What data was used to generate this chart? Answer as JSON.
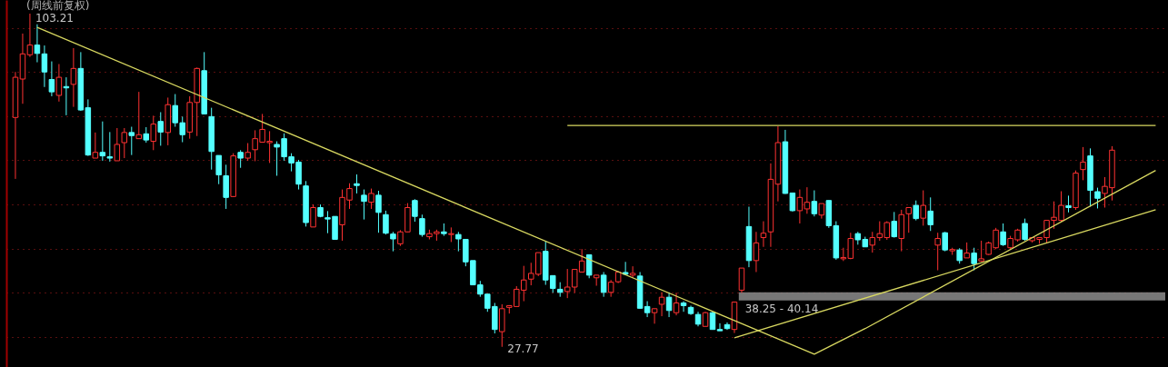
{
  "chart_data": {
    "type": "candlestick",
    "title": "(周线前复权)",
    "categories": [
      null,
      null,
      null,
      null,
      null,
      null,
      null,
      null,
      null,
      null,
      null,
      null,
      null,
      null,
      null,
      null,
      null,
      null,
      null,
      null,
      null,
      null,
      null,
      null,
      null,
      null,
      null,
      null,
      null,
      null,
      null,
      null,
      null,
      null,
      null,
      null,
      null,
      null,
      null,
      null,
      null,
      null,
      null,
      null,
      null,
      null,
      null,
      null,
      null,
      null,
      null,
      null,
      null,
      null,
      null,
      null,
      null,
      null,
      null,
      null,
      null,
      null,
      null,
      null,
      null,
      null,
      null,
      null,
      null,
      null,
      null,
      null,
      null,
      null,
      null,
      null,
      null,
      null,
      null,
      null,
      null,
      null,
      null,
      null,
      null,
      null,
      null,
      null,
      null,
      null,
      null,
      null,
      null,
      null,
      null,
      null,
      null,
      null,
      null,
      null,
      null,
      null,
      null,
      null,
      null,
      null,
      null,
      null,
      null,
      null,
      null,
      null,
      null,
      null,
      null,
      null,
      null,
      null,
      null,
      null,
      null,
      null,
      null,
      null,
      null,
      null,
      null,
      null,
      null,
      null,
      null,
      null,
      null,
      null,
      null,
      null,
      null,
      null,
      null,
      null,
      null,
      null,
      null,
      null,
      null,
      null,
      null,
      null,
      null,
      null,
      null,
      null,
      null,
      null,
      null,
      null,
      null,
      null
    ],
    "ohlc": [
      [
        79.7,
        90.0,
        65.8,
        88.8
      ],
      [
        88.4,
        98.7,
        82.8,
        94.1
      ],
      [
        93.9,
        103.21,
        93.4,
        96.1
      ],
      [
        96.1,
        100.8,
        92.2,
        94.2
      ],
      [
        94.1,
        96.0,
        86.6,
        90.0
      ],
      [
        88.3,
        92.4,
        84.5,
        85.5
      ],
      [
        84.7,
        91.8,
        83.3,
        88.8
      ],
      [
        86.7,
        88.8,
        80.2,
        86.4
      ],
      [
        87.2,
        95.4,
        82.1,
        90.8
      ],
      [
        90.8,
        94.5,
        81.2,
        81.4
      ],
      [
        81.9,
        83.8,
        71.0,
        71.2
      ],
      [
        70.5,
        76.3,
        70.5,
        71.8
      ],
      [
        71.8,
        78.8,
        69.9,
        71.0
      ],
      [
        70.8,
        76.4,
        69.7,
        70.5
      ],
      [
        69.9,
        77.3,
        69.9,
        73.6
      ],
      [
        74.0,
        77.3,
        70.5,
        76.3
      ],
      [
        76.3,
        77.6,
        71.2,
        75.6
      ],
      [
        74.9,
        85.5,
        74.9,
        75.8
      ],
      [
        76.0,
        77.5,
        74.0,
        74.6
      ],
      [
        74.3,
        80.1,
        72.3,
        78.2
      ],
      [
        78.8,
        80.9,
        73.3,
        76.4
      ],
      [
        76.3,
        84.2,
        73.4,
        82.6
      ],
      [
        82.4,
        85.0,
        77.6,
        78.5
      ],
      [
        78.5,
        79.9,
        74.1,
        75.8
      ],
      [
        76.4,
        84.5,
        74.9,
        83.1
      ],
      [
        83.1,
        91.0,
        75.5,
        90.8
      ],
      [
        90.3,
        94.5,
        80.5,
        80.5
      ],
      [
        79.9,
        81.9,
        67.9,
        72.0
      ],
      [
        71.1,
        71.1,
        64.6,
        66.7
      ],
      [
        66.5,
        69.0,
        59.0,
        61.6
      ],
      [
        61.8,
        71.6,
        61.7,
        71.0
      ],
      [
        71.8,
        72.3,
        68.3,
        70.5
      ],
      [
        70.5,
        73.9,
        69.9,
        71.8
      ],
      [
        72.4,
        76.8,
        69.8,
        74.9
      ],
      [
        74.1,
        80.5,
        74.0,
        77.0
      ],
      [
        74.0,
        76.6,
        69.4,
        74.3
      ],
      [
        73.6,
        74.3,
        66.5,
        73.0
      ],
      [
        74.9,
        76.1,
        69.9,
        70.8
      ],
      [
        70.8,
        71.6,
        67.5,
        69.4
      ],
      [
        69.6,
        70.1,
        63.4,
        64.6
      ],
      [
        64.2,
        65.3,
        55.0,
        55.9
      ],
      [
        54.9,
        60.0,
        54.9,
        59.3
      ],
      [
        59.3,
        60.0,
        57.1,
        57.3
      ],
      [
        57.0,
        58.5,
        53.5,
        56.7
      ],
      [
        57.3,
        57.3,
        52.0,
        52.1
      ],
      [
        55.4,
        63.4,
        51.8,
        61.6
      ],
      [
        61.0,
        64.8,
        59.0,
        63.6
      ],
      [
        64.7,
        66.8,
        62.5,
        64.3
      ],
      [
        62.1,
        63.4,
        56.6,
        60.7
      ],
      [
        60.5,
        63.6,
        59.0,
        62.5
      ],
      [
        62.1,
        63.1,
        53.6,
        58.2
      ],
      [
        57.7,
        58.6,
        53.2,
        53.5
      ],
      [
        53.3,
        53.8,
        49.4,
        52.2
      ],
      [
        51.1,
        54.2,
        50.6,
        53.8
      ],
      [
        53.8,
        60.3,
        53.8,
        59.3
      ],
      [
        60.9,
        61.2,
        56.1,
        57.3
      ],
      [
        56.8,
        57.7,
        52.7,
        53.2
      ],
      [
        52.7,
        54.3,
        52.1,
        53.4
      ],
      [
        53.4,
        54.3,
        51.8,
        53.8
      ],
      [
        53.8,
        55.7,
        52.9,
        53.4
      ],
      [
        53.2,
        54.8,
        51.5,
        53.4
      ],
      [
        53.2,
        53.8,
        49.4,
        52.2
      ],
      [
        52.1,
        52.1,
        46.0,
        47.0
      ],
      [
        47.3,
        47.3,
        41.8,
        41.8
      ],
      [
        41.8,
        42.7,
        39.1,
        39.7
      ],
      [
        39.7,
        39.7,
        35.7,
        36.5
      ],
      [
        36.9,
        37.7,
        30.8,
        31.7
      ],
      [
        31.2,
        37.4,
        27.77,
        36.4
      ],
      [
        36.7,
        37.2,
        35.3,
        37.1
      ],
      [
        36.9,
        41.5,
        36.9,
        40.8
      ],
      [
        40.6,
        46.1,
        38.1,
        42.9
      ],
      [
        43.1,
        46.8,
        41.7,
        44.4
      ],
      [
        44.2,
        49.1,
        43.8,
        49.1
      ],
      [
        49.4,
        51.6,
        41.8,
        42.9
      ],
      [
        43.9,
        43.9,
        40.0,
        41.0
      ],
      [
        40.8,
        42.4,
        39.1,
        40.1
      ],
      [
        40.3,
        45.4,
        38.8,
        41.3
      ],
      [
        41.3,
        45.3,
        40.0,
        45.3
      ],
      [
        44.7,
        49.9,
        44.7,
        47.2
      ],
      [
        48.6,
        48.6,
        43.3,
        44.0
      ],
      [
        43.4,
        44.0,
        41.6,
        44.0
      ],
      [
        44.0,
        44.7,
        39.1,
        40.1
      ],
      [
        40.1,
        42.9,
        39.1,
        42.4
      ],
      [
        42.5,
        44.9,
        42.2,
        44.7
      ],
      [
        44.6,
        47.0,
        44.0,
        44.2
      ],
      [
        44.0,
        46.0,
        43.4,
        44.4
      ],
      [
        43.8,
        44.7,
        36.4,
        36.5
      ],
      [
        36.9,
        38.1,
        34.5,
        35.5
      ],
      [
        35.5,
        36.4,
        33.0,
        36.4
      ],
      [
        37.4,
        40.1,
        34.7,
        39.0
      ],
      [
        39.0,
        40.1,
        34.5,
        36.0
      ],
      [
        35.5,
        40.0,
        34.9,
        37.7
      ],
      [
        37.7,
        38.1,
        35.7,
        37.1
      ],
      [
        36.7,
        37.1,
        35.0,
        35.3
      ],
      [
        35.1,
        35.7,
        32.4,
        32.9
      ],
      [
        32.4,
        35.7,
        32.4,
        35.5
      ],
      [
        35.5,
        35.8,
        31.7,
        31.7
      ],
      [
        31.7,
        33.1,
        31.4,
        31.4
      ],
      [
        32.8,
        33.3,
        31.6,
        31.9
      ],
      [
        31.7,
        37.9,
        30.9,
        37.9
      ],
      [
        40.6,
        45.6,
        40.0,
        45.6
      ],
      [
        55.0,
        59.5,
        45.8,
        47.3
      ],
      [
        47.3,
        53.8,
        44.7,
        51.3
      ],
      [
        52.5,
        56.2,
        50.4,
        53.5
      ],
      [
        53.8,
        69.3,
        50.4,
        65.7
      ],
      [
        64.6,
        77.7,
        60.7,
        74.0
      ],
      [
        74.2,
        76.9,
        62.4,
        62.5
      ],
      [
        62.6,
        62.6,
        58.4,
        58.6
      ],
      [
        58.6,
        63.4,
        55.7,
        61.6
      ],
      [
        59.0,
        63.9,
        57.9,
        60.5
      ],
      [
        60.7,
        63.2,
        57.3,
        57.9
      ],
      [
        57.6,
        60.2,
        56.8,
        60.2
      ],
      [
        60.9,
        60.9,
        54.7,
        55.2
      ],
      [
        55.2,
        56.2,
        47.5,
        47.9
      ],
      [
        47.7,
        50.2,
        47.2,
        48.0
      ],
      [
        47.8,
        53.6,
        47.6,
        52.3
      ],
      [
        53.4,
        53.8,
        50.9,
        52.0
      ],
      [
        52.1,
        52.7,
        50.4,
        50.4
      ],
      [
        50.8,
        53.8,
        49.1,
        52.5
      ],
      [
        52.5,
        56.2,
        51.8,
        53.4
      ],
      [
        52.5,
        56.2,
        52.0,
        55.9
      ],
      [
        56.2,
        58.3,
        52.5,
        52.7
      ],
      [
        52.3,
        58.8,
        49.4,
        57.7
      ],
      [
        57.9,
        59.3,
        53.6,
        59.3
      ],
      [
        59.8,
        60.9,
        56.4,
        56.8
      ],
      [
        56.9,
        63.2,
        55.2,
        59.8
      ],
      [
        58.5,
        61.6,
        54.0,
        55.4
      ],
      [
        50.8,
        53.6,
        45.1,
        52.3
      ],
      [
        53.6,
        53.8,
        49.4,
        49.7
      ],
      [
        49.5,
        50.2,
        48.6,
        49.8
      ],
      [
        49.7,
        50.1,
        46.6,
        47.3
      ],
      [
        47.9,
        51.4,
        47.9,
        49.0
      ],
      [
        49.0,
        50.2,
        45.1,
        46.6
      ],
      [
        47.2,
        51.8,
        47.0,
        47.7
      ],
      [
        48.7,
        51.6,
        48.6,
        51.3
      ],
      [
        50.2,
        54.7,
        49.9,
        54.2
      ],
      [
        53.8,
        55.7,
        50.6,
        50.9
      ],
      [
        50.2,
        52.9,
        49.9,
        52.3
      ],
      [
        52.0,
        54.5,
        51.6,
        54.2
      ],
      [
        55.7,
        56.8,
        51.8,
        52.1
      ],
      [
        51.8,
        52.5,
        51.4,
        52.5
      ],
      [
        52.1,
        52.5,
        51.1,
        52.5
      ],
      [
        52.5,
        56.4,
        51.3,
        56.4
      ],
      [
        56.4,
        60.7,
        54.5,
        57.1
      ],
      [
        56.4,
        63.0,
        56.1,
        59.8
      ],
      [
        59.7,
        62.0,
        58.2,
        59.3
      ],
      [
        59.3,
        67.7,
        58.8,
        67.1
      ],
      [
        67.9,
        73.0,
        65.5,
        69.6
      ],
      [
        71.0,
        72.7,
        59.5,
        63.2
      ],
      [
        62.9,
        63.8,
        59.1,
        61.4
      ],
      [
        62.5,
        66.2,
        59.3,
        64.1
      ],
      [
        63.8,
        73.2,
        60.9,
        72.3
      ],
      null,
      null,
      null,
      null,
      null,
      null
    ],
    "colors": [
      "#ff3232",
      "#ff3232",
      "#ff3232",
      "#54ffff",
      "#54ffff",
      "#54ffff",
      "#ff3232",
      "#54ffff",
      "#ff3232",
      "#54ffff",
      "#54ffff",
      "#ff3232",
      "#54ffff",
      "#54ffff",
      "#ff3232",
      "#ff3232",
      "#54ffff",
      "#ff3232",
      "#54ffff",
      "#ff3232",
      "#54ffff",
      "#ff3232",
      "#54ffff",
      "#54ffff",
      "#ff3232",
      "#ff3232",
      "#54ffff",
      "#54ffff",
      "#54ffff",
      "#54ffff",
      "#ff3232",
      "#54ffff",
      "#ff3232",
      "#ff3232",
      "#ff3232",
      "#ff3232",
      "#54ffff",
      "#54ffff",
      "#54ffff",
      "#54ffff",
      "#54ffff",
      "#ff3232",
      "#54ffff",
      "#54ffff",
      "#54ffff",
      "#ff3232",
      "#ff3232",
      "#54ffff",
      "#54ffff",
      "#ff3232",
      "#54ffff",
      "#54ffff",
      "#54ffff",
      "#ff3232",
      "#ff3232",
      "#54ffff",
      "#54ffff",
      "#ff3232",
      "#ff3232",
      "#54ffff",
      "#ff3232",
      "#54ffff",
      "#54ffff",
      "#54ffff",
      "#54ffff",
      "#54ffff",
      "#54ffff",
      "#ff3232",
      "#ff3232",
      "#ff3232",
      "#ff3232",
      "#ff3232",
      "#ff3232",
      "#54ffff",
      "#54ffff",
      "#54ffff",
      "#ff3232",
      "#ff3232",
      "#ff3232",
      "#54ffff",
      "#ff3232",
      "#54ffff",
      "#ff3232",
      "#ff3232",
      "#54ffff",
      "#ff3232",
      "#54ffff",
      "#54ffff",
      "#ff3232",
      "#ff3232",
      "#54ffff",
      "#ff3232",
      "#54ffff",
      "#54ffff",
      "#54ffff",
      "#ff3232",
      "#54ffff",
      "#54ffff",
      "#54ffff",
      "#ff3232",
      "#ff3232",
      "#54ffff",
      "#ff3232",
      "#ff3232",
      "#ff3232",
      "#ff3232",
      "#54ffff",
      "#54ffff",
      "#ff3232",
      "#ff3232",
      "#54ffff",
      "#ff3232",
      "#54ffff",
      "#54ffff",
      "#ff3232",
      "#ff3232",
      "#54ffff",
      "#54ffff",
      "#ff3232",
      "#ff3232",
      "#ff3232",
      "#54ffff",
      "#ff3232",
      "#ff3232",
      "#54ffff",
      "#ff3232",
      "#54ffff",
      "#ff3232",
      "#54ffff",
      "#ff3232",
      "#54ffff",
      "#ff3232",
      "#54ffff",
      "#ff3232",
      "#ff3232",
      "#ff3232",
      "#54ffff",
      "#ff3232",
      "#ff3232",
      "#54ffff",
      "#ff3232",
      "#ff3232",
      "#ff3232",
      "#ff3232",
      "#ff3232",
      "#54ffff",
      "#ff3232",
      "#ff3232",
      "#54ffff",
      "#54ffff",
      "#ff3232",
      "#ff3232",
      null,
      null,
      null,
      null,
      null,
      null
    ],
    "series": [
      {
        "type": "line",
        "color": "#d8d860",
        "values": [
          null,
          null,
          null,
          100.1,
          null,
          null,
          null,
          null,
          null,
          null,
          null,
          null,
          null,
          null,
          null,
          null,
          null,
          null,
          null,
          null,
          null,
          null,
          null,
          null,
          null,
          null,
          null,
          null,
          null,
          null,
          null,
          null,
          null,
          null,
          null,
          null,
          null,
          null,
          null,
          null,
          null,
          null,
          null,
          null,
          null,
          null,
          null,
          null,
          null,
          null,
          null,
          null,
          null,
          null,
          null,
          null,
          null,
          null,
          null,
          null,
          null,
          null,
          null,
          null,
          null,
          null,
          null,
          null,
          null,
          null,
          null,
          null,
          null,
          null,
          null,
          null,
          null,
          null,
          null,
          null,
          null,
          null,
          null,
          null,
          null,
          null,
          null,
          null,
          null,
          null,
          null,
          null,
          null,
          null,
          null,
          null,
          null,
          null,
          null,
          null,
          null,
          null,
          null,
          null,
          null,
          null,
          null,
          null,
          null,
          null,
          26.1,
          null,
          null,
          null,
          null,
          null,
          null,
          31.9,
          null,
          null,
          null,
          null,
          null,
          null,
          null,
          null,
          null,
          null,
          null,
          null,
          null,
          null,
          null,
          null,
          null,
          null,
          null,
          null,
          null,
          null,
          null,
          null,
          null,
          null,
          null,
          null,
          null,
          null,
          null,
          null,
          null,
          null,
          null,
          null,
          null,
          null,
          null,
          67.7
        ]
      },
      {
        "type": "line",
        "color": "#d8d860",
        "values": [
          null,
          null,
          null,
          null,
          null,
          null,
          null,
          null,
          null,
          null,
          null,
          null,
          null,
          null,
          null,
          null,
          null,
          null,
          null,
          null,
          null,
          null,
          null,
          null,
          null,
          null,
          null,
          null,
          null,
          null,
          null,
          null,
          null,
          null,
          null,
          null,
          null,
          null,
          null,
          null,
          null,
          null,
          null,
          null,
          null,
          null,
          null,
          null,
          null,
          null,
          null,
          null,
          null,
          null,
          null,
          null,
          null,
          null,
          null,
          null,
          null,
          null,
          null,
          null,
          null,
          null,
          null,
          null,
          null,
          null,
          null,
          null,
          null,
          null,
          null,
          null,
          null,
          null,
          null,
          null,
          null,
          null,
          null,
          null,
          null,
          null,
          null,
          null,
          null,
          null,
          null,
          null,
          null,
          null,
          null,
          null,
          null,
          null,
          null,
          29.8,
          null,
          null,
          null,
          null,
          null,
          null,
          null,
          null,
          null,
          null,
          null,
          null,
          null,
          null,
          null,
          null,
          null,
          null,
          null,
          null,
          null,
          null,
          null,
          null,
          null,
          null,
          null,
          null,
          null,
          null,
          null,
          null,
          null,
          null,
          null,
          null,
          null,
          null,
          null,
          null,
          null,
          null,
          null,
          null,
          null,
          null,
          null,
          null,
          null,
          null,
          null,
          null,
          null,
          null,
          null,
          null,
          null,
          58.8
        ]
      },
      {
        "type": "line",
        "color": "#d8d860",
        "values": [
          null,
          null,
          null,
          null,
          null,
          null,
          null,
          null,
          null,
          null,
          null,
          null,
          null,
          null,
          null,
          null,
          null,
          null,
          null,
          null,
          null,
          null,
          null,
          null,
          null,
          null,
          null,
          null,
          null,
          null,
          null,
          null,
          null,
          null,
          null,
          null,
          null,
          null,
          null,
          null,
          null,
          null,
          null,
          null,
          null,
          null,
          null,
          null,
          null,
          null,
          null,
          null,
          null,
          null,
          null,
          null,
          null,
          null,
          null,
          null,
          null,
          null,
          null,
          null,
          null,
          null,
          null,
          null,
          null,
          null,
          null,
          null,
          null,
          null,
          null,
          null,
          77.9,
          null,
          null,
          null,
          null,
          null,
          null,
          null,
          null,
          null,
          null,
          null,
          null,
          null,
          null,
          null,
          null,
          null,
          null,
          null,
          null,
          null,
          null,
          null,
          null,
          null,
          null,
          null,
          null,
          null,
          null,
          null,
          null,
          null,
          null,
          null,
          null,
          null,
          null,
          null,
          null,
          null,
          null,
          null,
          null,
          null,
          null,
          null,
          null,
          null,
          null,
          null,
          null,
          null,
          null,
          null,
          null,
          null,
          null,
          null,
          null,
          null,
          null,
          null,
          null,
          null,
          null,
          null,
          null,
          null,
          null,
          null,
          null,
          null,
          null,
          null,
          null,
          null,
          null,
          null,
          null,
          77.9
        ]
      }
    ],
    "bands": [
      {
        "axis": "y",
        "from": 38.25,
        "to": 40.14,
        "label": "38.25 - 40.14",
        "color": "#8c8c8c"
      }
    ],
    "annotations": [
      "103.21",
      "27.77"
    ],
    "ylim": [
      23.2,
      106.3
    ],
    "yticks": [
      {
        "value": 30,
        "label": null
      },
      {
        "value": 40,
        "label": null
      },
      {
        "value": 50,
        "label": null
      },
      {
        "value": 60,
        "label": null
      },
      {
        "value": 70,
        "label": null
      },
      {
        "value": 80,
        "label": null
      },
      {
        "value": 90,
        "label": null
      },
      {
        "value": 100,
        "label": null
      }
    ],
    "grid": "y"
  }
}
